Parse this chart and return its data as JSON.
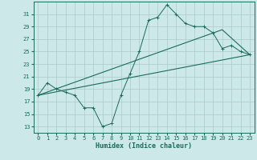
{
  "xlabel": "Humidex (Indice chaleur)",
  "bg_color": "#cce8e8",
  "grid_color": "#aacccc",
  "line_color": "#1a6b5a",
  "xlim": [
    -0.5,
    23.5
  ],
  "ylim": [
    12,
    33
  ],
  "yticks": [
    13,
    15,
    17,
    19,
    21,
    23,
    25,
    27,
    29,
    31
  ],
  "xticks": [
    0,
    1,
    2,
    3,
    4,
    5,
    6,
    7,
    8,
    9,
    10,
    11,
    12,
    13,
    14,
    15,
    16,
    17,
    18,
    19,
    20,
    21,
    22,
    23
  ],
  "line1_x": [
    0,
    1,
    2,
    3,
    4,
    5,
    6,
    7,
    8,
    9,
    10,
    11,
    12,
    13,
    14,
    15,
    16,
    17,
    18,
    19,
    20,
    21,
    22,
    23
  ],
  "line1_y": [
    18,
    20,
    19,
    18.5,
    18,
    16,
    16,
    13,
    13.5,
    18,
    21.5,
    25,
    30,
    30.5,
    32.5,
    31,
    29.5,
    29,
    29,
    28,
    25.5,
    26,
    25,
    24.5
  ],
  "line2_x": [
    0,
    23
  ],
  "line2_y": [
    18,
    24.5
  ],
  "line3_x": [
    0,
    20,
    23
  ],
  "line3_y": [
    18,
    28.5,
    24.5
  ],
  "tick_fontsize": 5,
  "xlabel_fontsize": 6
}
